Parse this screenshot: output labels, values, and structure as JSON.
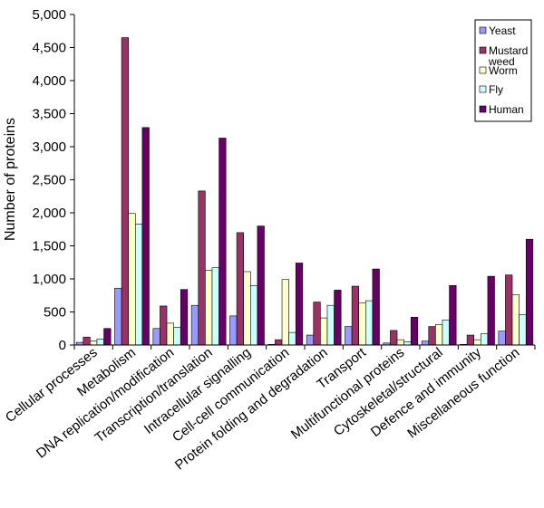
{
  "chart_data": {
    "type": "bar",
    "ylabel": "Number of proteins",
    "xlabel": "",
    "ylim": [
      0,
      5000
    ],
    "yticks": [
      0,
      500,
      1000,
      1500,
      2000,
      2500,
      3000,
      3500,
      4000,
      4500,
      5000
    ],
    "ytick_labels": [
      "0",
      "500",
      "1,000",
      "1,500",
      "2,000",
      "2,500",
      "3,000",
      "3,500",
      "4,000",
      "4,500",
      "5,000"
    ],
    "grid": false,
    "legend_position": "top-right",
    "categories": [
      "Cellular processes",
      "Metabolism",
      "DNA replication/modification",
      "Transcription/translation",
      "Intracellular signalling",
      "Cell-cell communication",
      "Protein folding and degradation",
      "Transport",
      "Multifunctional proteins",
      "Cytoskeletal/structural",
      "Defence and immunity",
      "Miscellaneous function"
    ],
    "series": [
      {
        "name": "Yeast",
        "color": "#9999ff",
        "values": [
          40,
          860,
          250,
          600,
          440,
          10,
          150,
          280,
          30,
          60,
          10,
          210
        ]
      },
      {
        "name": "Mustard weed",
        "color": "#993366",
        "values": [
          120,
          4650,
          590,
          2330,
          1700,
          80,
          650,
          890,
          220,
          280,
          150,
          1060
        ]
      },
      {
        "name": "Worm",
        "color": "#ffffcc",
        "values": [
          60,
          1990,
          330,
          1130,
          1110,
          990,
          410,
          640,
          80,
          310,
          80,
          760
        ]
      },
      {
        "name": "Fly",
        "color": "#ccffff",
        "values": [
          90,
          1830,
          270,
          1170,
          900,
          190,
          600,
          670,
          50,
          380,
          170,
          460
        ]
      },
      {
        "name": "Human",
        "color": "#660066",
        "values": [
          250,
          3290,
          840,
          3130,
          1800,
          1240,
          830,
          1150,
          420,
          900,
          1040,
          1600
        ]
      }
    ]
  }
}
